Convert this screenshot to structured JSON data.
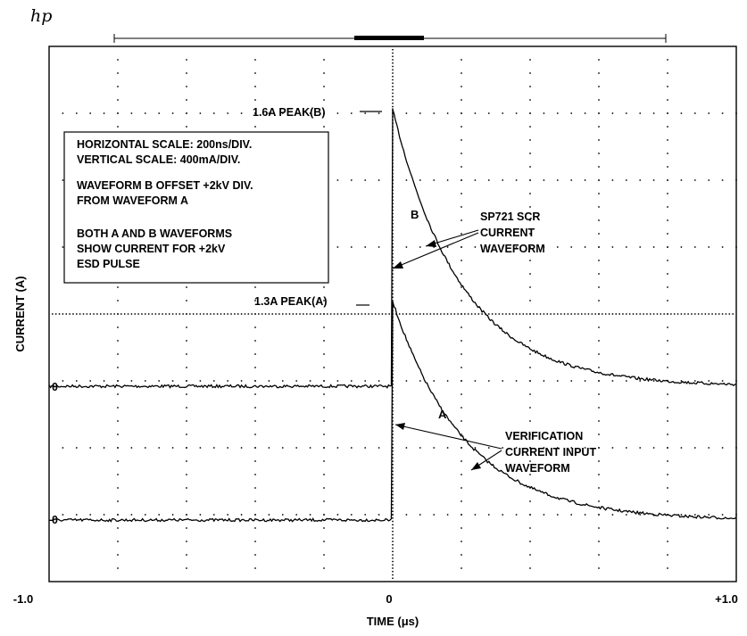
{
  "logo": "hp",
  "chart_data": {
    "type": "line",
    "x": {
      "label": "TIME (μs)",
      "min": -1.0,
      "max": 1.0,
      "tick_labels": [
        "-1.0",
        "0",
        "+1.0"
      ]
    },
    "y": {
      "label": "CURRENT (A)",
      "divisions": 8
    },
    "grid": true,
    "info_box": [
      "HORIZONTAL SCALE:  200ns/DIV.",
      "VERTICAL SCALE:  400mA/DIV.",
      "WAVEFORM B OFFSET +2kV DIV.",
      "FROM WAVEFORM A",
      "BOTH A AND B WAVEFORMS",
      "SHOW CURRENT FOR +2kV",
      "ESD PULSE"
    ],
    "series": [
      {
        "name": "B",
        "zero_label": "0",
        "peak_label": "1.6A PEAK(B)",
        "baseline_A": 0,
        "peak_A": 1.6,
        "peak_time_us": 0.0,
        "decay_tau_us": 0.2,
        "points_us_A": [
          [
            -1.0,
            0
          ],
          [
            0,
            0
          ],
          [
            0.005,
            1.6
          ],
          [
            0.05,
            1.26
          ],
          [
            0.1,
            0.97
          ],
          [
            0.2,
            0.59
          ],
          [
            0.3,
            0.35
          ],
          [
            0.4,
            0.21
          ],
          [
            0.5,
            0.13
          ],
          [
            0.6,
            0.08
          ],
          [
            0.8,
            0.03
          ],
          [
            1.0,
            0.01
          ]
        ]
      },
      {
        "name": "A",
        "zero_label": "0",
        "peak_label": "1.3A PEAK(A)",
        "baseline_A": 0,
        "peak_A": 1.3,
        "peak_time_us": 0.0,
        "decay_tau_us": 0.21,
        "points_us_A": [
          [
            -1.0,
            0
          ],
          [
            0,
            0
          ],
          [
            0.005,
            1.3
          ],
          [
            0.05,
            1.04
          ],
          [
            0.1,
            0.81
          ],
          [
            0.2,
            0.5
          ],
          [
            0.3,
            0.31
          ],
          [
            0.4,
            0.19
          ],
          [
            0.5,
            0.12
          ],
          [
            0.6,
            0.07
          ],
          [
            0.8,
            0.03
          ],
          [
            1.0,
            0.01
          ]
        ]
      }
    ],
    "annotations": [
      {
        "text": [
          "SP721 SCR",
          "CURRENT",
          "WAVEFORM"
        ]
      },
      {
        "text": [
          "VERIFICATION",
          "CURRENT INPUT",
          "WAVEFORM"
        ]
      }
    ]
  }
}
